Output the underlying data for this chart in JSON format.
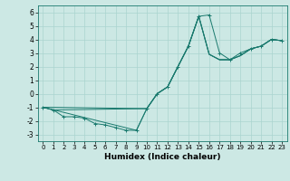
{
  "title": "",
  "xlabel": "Humidex (Indice chaleur)",
  "bg_color": "#cce8e4",
  "line_color": "#1a7a6e",
  "grid_color": "#aad4cf",
  "xlim": [
    -0.5,
    23.5
  ],
  "ylim": [
    -3.5,
    6.5
  ],
  "xticks": [
    0,
    1,
    2,
    3,
    4,
    5,
    6,
    7,
    8,
    9,
    10,
    11,
    12,
    13,
    14,
    15,
    16,
    17,
    18,
    19,
    20,
    21,
    22,
    23
  ],
  "yticks": [
    -3,
    -2,
    -1,
    0,
    1,
    2,
    3,
    4,
    5,
    6
  ],
  "series": [
    {
      "x": [
        0,
        1,
        2,
        3,
        4,
        5,
        6,
        7,
        8,
        9,
        10,
        11,
        12,
        13,
        14,
        15,
        16,
        17,
        18,
        19,
        20,
        21,
        22,
        23
      ],
      "y": [
        -1.0,
        -1.2,
        -1.7,
        -1.7,
        -1.8,
        -2.2,
        -2.3,
        -2.5,
        -2.7,
        -2.7,
        -1.1,
        0.0,
        0.5,
        2.0,
        3.5,
        5.7,
        5.8,
        3.0,
        2.5,
        3.0,
        3.3,
        3.5,
        4.0,
        3.9
      ],
      "marker": true
    },
    {
      "x": [
        0,
        1,
        10,
        11,
        12,
        13,
        14,
        15,
        16,
        17,
        18,
        19,
        20,
        21,
        22,
        23
      ],
      "y": [
        -1.0,
        -1.2,
        -1.1,
        0.0,
        0.5,
        2.0,
        3.5,
        5.7,
        2.9,
        2.5,
        2.5,
        2.8,
        3.3,
        3.5,
        4.0,
        3.9
      ],
      "marker": false
    },
    {
      "x": [
        0,
        10,
        11,
        12,
        13,
        14,
        15,
        16,
        17,
        18,
        19,
        20,
        21,
        22,
        23
      ],
      "y": [
        -1.0,
        -1.1,
        0.0,
        0.5,
        2.0,
        3.5,
        5.7,
        2.9,
        2.5,
        2.5,
        2.8,
        3.3,
        3.5,
        4.0,
        3.9
      ],
      "marker": false
    },
    {
      "x": [
        0,
        9,
        10,
        11,
        12,
        13,
        14,
        15,
        16,
        17,
        18,
        19,
        20,
        21,
        22,
        23
      ],
      "y": [
        -1.0,
        -2.7,
        -1.1,
        0.0,
        0.5,
        2.0,
        3.5,
        5.7,
        2.9,
        2.5,
        2.5,
        2.8,
        3.3,
        3.5,
        4.0,
        3.9
      ],
      "marker": false
    }
  ]
}
